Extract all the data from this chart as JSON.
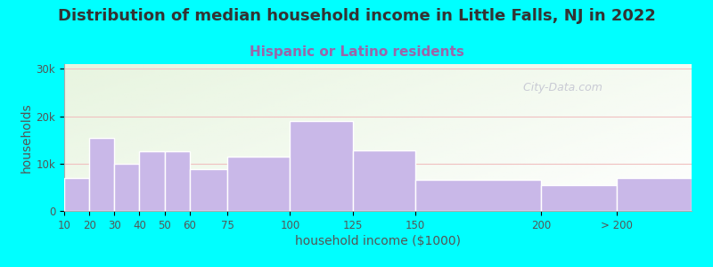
{
  "title": "Distribution of median household income in Little Falls, NJ in 2022",
  "subtitle": "Hispanic or Latino residents",
  "xlabel": "household income ($1000)",
  "ylabel": "households",
  "background_outer": "#00FFFF",
  "bar_color": "#C9B8E8",
  "bar_edgecolor": "#FFFFFF",
  "bar_linewidth": 1.0,
  "title_fontsize": 13,
  "title_color": "#333333",
  "subtitle_fontsize": 11,
  "subtitle_color": "#9966AA",
  "xlabel_fontsize": 10,
  "ylabel_fontsize": 10,
  "tick_fontsize": 8.5,
  "tick_color": "#555555",
  "ylim": [
    0,
    31000
  ],
  "yticks": [
    0,
    10000,
    20000,
    30000
  ],
  "ytick_labels": [
    "0",
    "10k",
    "20k",
    "30k"
  ],
  "grid_color": "#F0C0C0",
  "grid_linewidth": 0.8,
  "watermark": "  City-Data.com",
  "bar_edges": [
    10,
    20,
    30,
    40,
    50,
    60,
    75,
    100,
    125,
    150,
    200,
    230,
    260
  ],
  "bar_labels": [
    "10",
    "20",
    "30",
    "40",
    "50",
    "60",
    "75",
    "100",
    "125",
    "150",
    "200",
    "> 200"
  ],
  "values": [
    7000,
    15500,
    10000,
    12500,
    12500,
    8800,
    11500,
    19000,
    12800,
    6500,
    5500,
    7000
  ],
  "bg_gradient_left": "#E8F5E0",
  "bg_gradient_right": "#FFFFFF"
}
